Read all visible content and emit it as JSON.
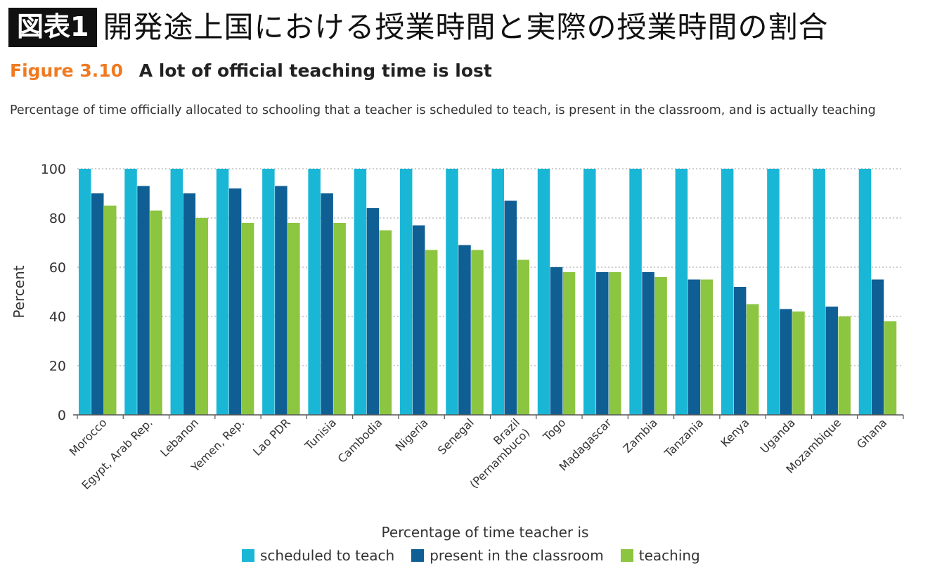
{
  "header": {
    "badge": "図表1",
    "title": "開発途上国における授業時間と実際の授業時間の割合"
  },
  "figure": {
    "number": "Figure 3.10",
    "heading": "A lot of official teaching time is lost",
    "subtitle": "Percentage of time officially allocated to schooling that a teacher is scheduled to teach, is present in the classroom, and is actually teaching"
  },
  "colors": {
    "scheduled": "#1ab6d6",
    "present": "#0f5f95",
    "teaching": "#8cc540",
    "grid": "#b0b0b0",
    "axis": "#555555"
  },
  "chart_data": {
    "type": "bar",
    "categories": [
      "Morocco",
      "Egypt, Arab Rep.",
      "Lebanon",
      "Yemen, Rep.",
      "Lao PDR",
      "Tunisia",
      "Cambodia",
      "Nigeria",
      "Senegal",
      "Brazil (Pernambuco)",
      "Togo",
      "Madagascar",
      "Zambia",
      "Tanzania",
      "Kenya",
      "Uganda",
      "Mozambique",
      "Ghana"
    ],
    "series": [
      {
        "name": "scheduled to teach",
        "values": [
          100,
          100,
          100,
          100,
          100,
          100,
          100,
          100,
          100,
          100,
          100,
          100,
          100,
          100,
          100,
          100,
          100,
          100
        ]
      },
      {
        "name": "present in the classroom",
        "values": [
          90,
          93,
          90,
          92,
          93,
          90,
          84,
          77,
          69,
          87,
          60,
          58,
          58,
          55,
          52,
          43,
          44,
          55
        ]
      },
      {
        "name": "teaching",
        "values": [
          85,
          83,
          80,
          78,
          78,
          78,
          75,
          67,
          67,
          63,
          58,
          58,
          56,
          55,
          45,
          42,
          40,
          38
        ]
      }
    ],
    "ylabel": "Percent",
    "xlabel": "",
    "ylim": [
      0,
      100
    ],
    "yticks": [
      0,
      20,
      40,
      60,
      80,
      100
    ],
    "legend_title": "Percentage of time teacher is",
    "legend_position": "bottom-center",
    "grid": true
  }
}
